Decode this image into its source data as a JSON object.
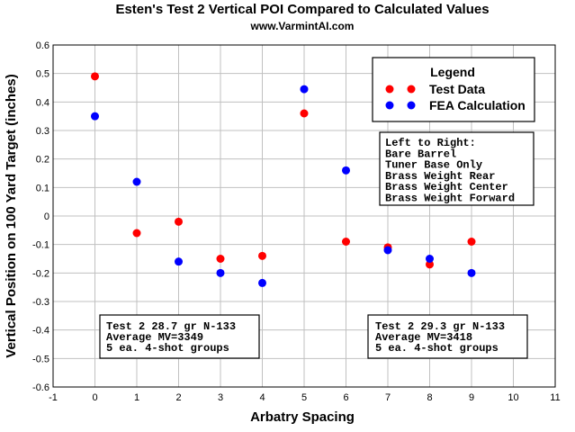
{
  "chart_data": {
    "type": "scatter",
    "title": "Esten's Test 2 Vertical POI Compared to Calculated Values",
    "subtitle": "www.VarmintAI.com",
    "xlabel": "Arbatry Spacing",
    "ylabel": "Vertical Position on 100 Yard Target (inches)",
    "xlim": [
      -1,
      11
    ],
    "ylim": [
      -0.6,
      0.6
    ],
    "xticks": [
      -1,
      0,
      1,
      2,
      3,
      4,
      5,
      6,
      7,
      8,
      9,
      10,
      11
    ],
    "yticks": [
      -0.6,
      -0.5,
      -0.4,
      -0.3,
      -0.2,
      -0.1,
      0,
      0.1,
      0.2,
      0.3,
      0.4,
      0.5,
      0.6
    ],
    "grid": true,
    "legend": {
      "title": "Legend",
      "placement": "top-right"
    },
    "series": [
      {
        "name": "Test Data",
        "color": "#ff0000",
        "x": [
          0,
          1,
          2,
          3,
          4,
          5,
          6,
          7,
          8,
          9
        ],
        "y": [
          0.49,
          -0.06,
          -0.02,
          -0.15,
          -0.14,
          0.36,
          -0.09,
          -0.11,
          -0.17,
          -0.09
        ]
      },
      {
        "name": "FEA Calculation",
        "color": "#0000ff",
        "x": [
          0,
          1,
          2,
          3,
          4,
          5,
          6,
          7,
          8,
          9
        ],
        "y": [
          0.35,
          0.12,
          -0.16,
          -0.2,
          -0.235,
          0.445,
          0.16,
          -0.12,
          -0.15,
          -0.2
        ]
      }
    ],
    "annotations": {
      "order": {
        "lines": [
          "Left to Right:",
          "Bare Barrel",
          "Tuner Base Only",
          "Brass Weight Rear",
          "Brass Weight Center",
          "Brass Weight Forward"
        ]
      },
      "test_left": {
        "lines": [
          "Test 2 28.7 gr N-133",
          "Average MV=3349",
          "5 ea. 4-shot groups"
        ]
      },
      "test_right": {
        "lines": [
          "Test 2 29.3 gr N-133",
          "Average MV=3418",
          "5 ea. 4-shot groups"
        ]
      }
    }
  }
}
